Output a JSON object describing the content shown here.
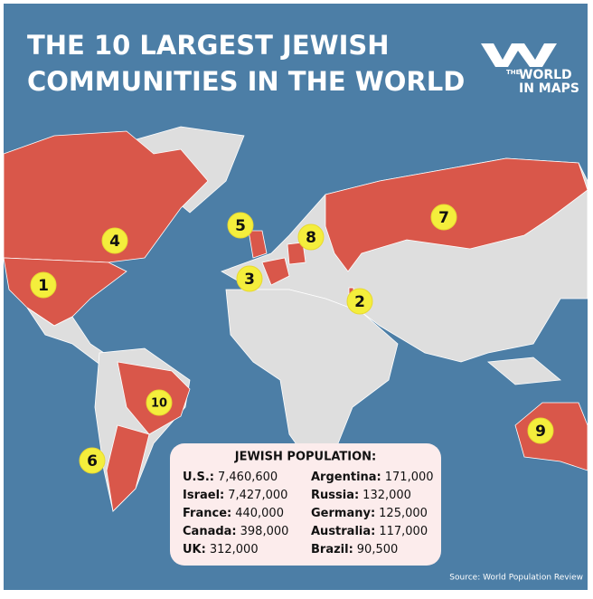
{
  "title_lines": [
    "THE 10 LARGEST JEWISH",
    "COMMUNITIES IN THE WORLD"
  ],
  "logo": {
    "lines": [
      "THE",
      "WORLD",
      "IN MAPS"
    ]
  },
  "markers": [
    "1",
    "2",
    "3",
    "4",
    "5",
    "6",
    "7",
    "8",
    "9",
    "10"
  ],
  "legend": {
    "title": "JEWISH POPULATION:",
    "left": [
      {
        "name": "U.S.:",
        "value": "7,460,600"
      },
      {
        "name": "Israel:",
        "value": "7,427,000"
      },
      {
        "name": "France:",
        "value": "440,000"
      },
      {
        "name": "Canada:",
        "value": "398,000"
      },
      {
        "name": "UK:",
        "value": "312,000"
      }
    ],
    "right": [
      {
        "name": "Argentina:",
        "value": "171,000"
      },
      {
        "name": "Russia:",
        "value": "132,000"
      },
      {
        "name": "Germany:",
        "value": "125,000"
      },
      {
        "name": "Australia:",
        "value": "117,000"
      },
      {
        "name": "Brazil:",
        "value": "90,500"
      }
    ]
  },
  "source": "Source: World Population Review"
}
